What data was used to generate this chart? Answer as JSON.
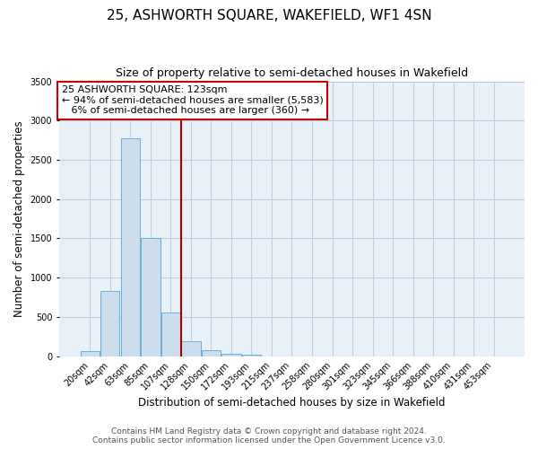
{
  "title": "25, ASHWORTH SQUARE, WAKEFIELD, WF1 4SN",
  "subtitle": "Size of property relative to semi-detached houses in Wakefield",
  "xlabel": "Distribution of semi-detached houses by size in Wakefield",
  "ylabel": "Number of semi-detached properties",
  "bin_labels": [
    "20sqm",
    "42sqm",
    "63sqm",
    "85sqm",
    "107sqm",
    "128sqm",
    "150sqm",
    "172sqm",
    "193sqm",
    "215sqm",
    "237sqm",
    "258sqm",
    "280sqm",
    "301sqm",
    "323sqm",
    "345sqm",
    "366sqm",
    "388sqm",
    "410sqm",
    "431sqm",
    "453sqm"
  ],
  "bar_values": [
    70,
    830,
    2780,
    1510,
    560,
    195,
    75,
    35,
    20,
    0,
    0,
    0,
    0,
    0,
    0,
    0,
    0,
    0,
    0,
    0,
    0
  ],
  "bar_color": "#ccdded",
  "bar_edge_color": "#6aaed6",
  "vline_color": "#aa0000",
  "vline_x": 4.5,
  "annotation_title": "25 ASHWORTH SQUARE: 123sqm",
  "annotation_line1": "← 94% of semi-detached houses are smaller (5,583)",
  "annotation_line2": "   6% of semi-detached houses are larger (360) →",
  "annotation_box_color": "#ffffff",
  "annotation_box_edge": "#cc0000",
  "ylim": [
    0,
    3500
  ],
  "yticks": [
    0,
    500,
    1000,
    1500,
    2000,
    2500,
    3000,
    3500
  ],
  "footer_line1": "Contains HM Land Registry data © Crown copyright and database right 2024.",
  "footer_line2": "Contains public sector information licensed under the Open Government Licence v3.0.",
  "background_color": "#ffffff",
  "plot_bg_color": "#e8f0f8",
  "grid_color": "#c0d0e0",
  "title_fontsize": 11,
  "subtitle_fontsize": 9,
  "axis_label_fontsize": 8.5,
  "tick_fontsize": 7,
  "annotation_fontsize": 8,
  "footer_fontsize": 6.5
}
